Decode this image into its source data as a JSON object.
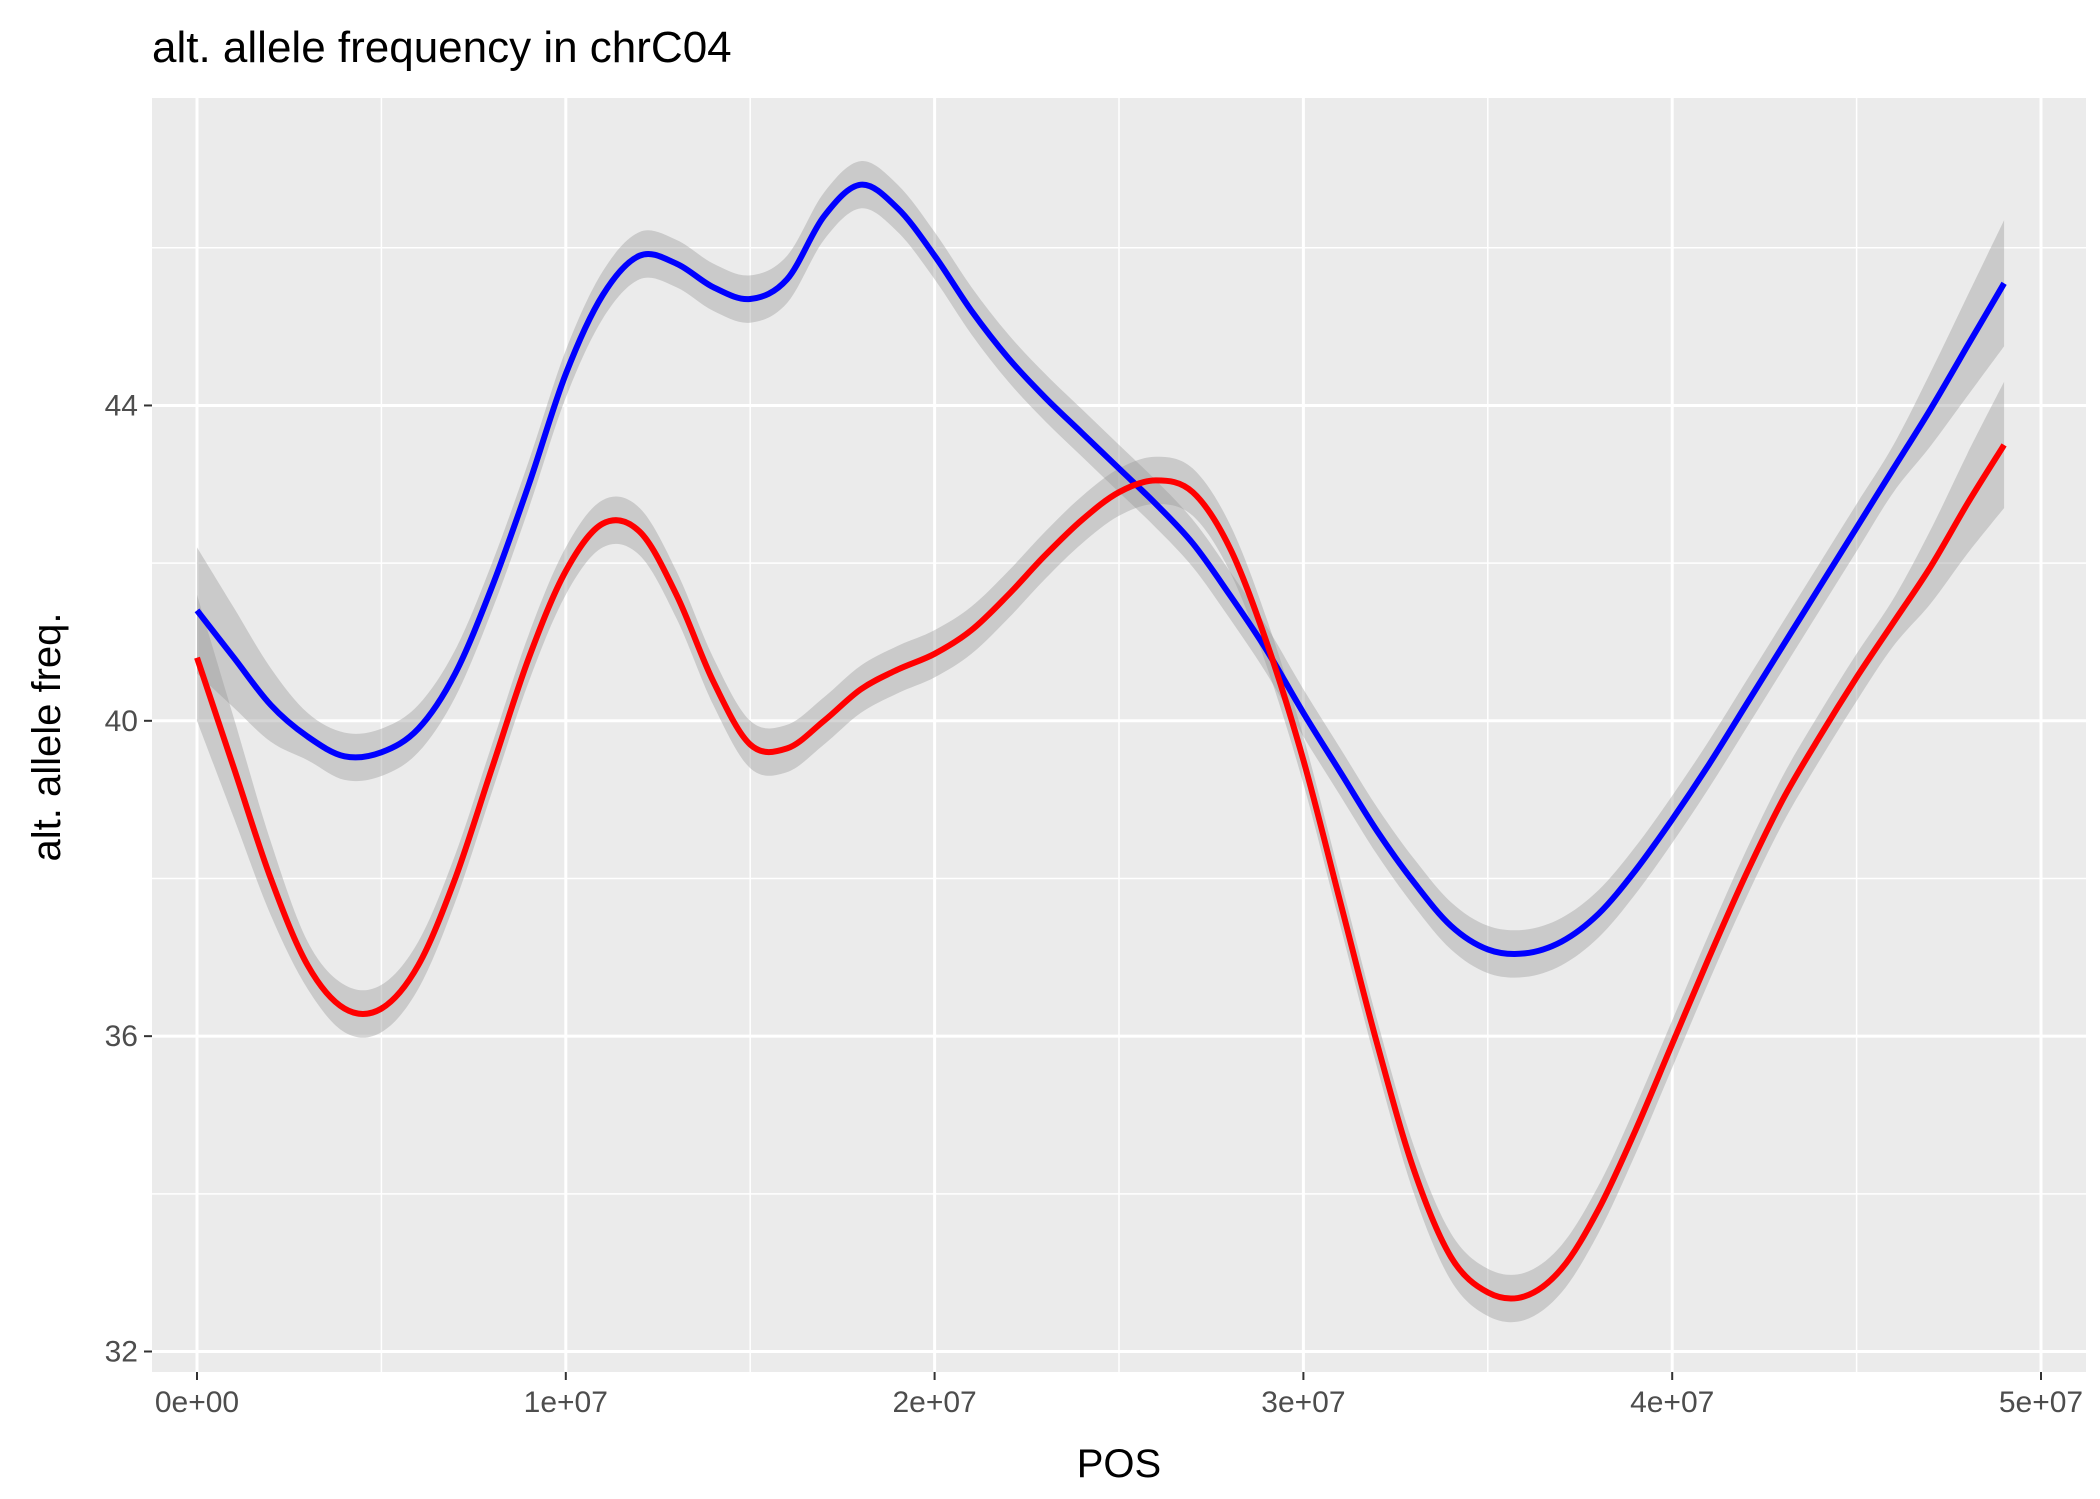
{
  "chart_data": {
    "type": "line",
    "title": "alt. allele frequency in chrC04",
    "xlabel": "POS",
    "ylabel": "alt. allele freq.",
    "xlim": [
      -1220000,
      51220000
    ],
    "ylim": [
      31.74,
      47.9
    ],
    "x_ticks": [
      0,
      10000000,
      20000000,
      30000000,
      40000000,
      50000000
    ],
    "x_tick_labels": [
      "0e+00",
      "1e+07",
      "2e+07",
      "3e+07",
      "4e+07",
      "5e+07"
    ],
    "y_ticks": [
      32,
      36,
      40,
      44
    ],
    "y_tick_labels": [
      "32",
      "36",
      "40",
      "44"
    ],
    "grid": true,
    "legend": "none",
    "x": [
      0,
      1000000,
      2000000,
      3000000,
      4000000,
      5000000,
      6000000,
      7000000,
      8000000,
      9000000,
      10000000,
      11000000,
      12000000,
      13000000,
      14000000,
      15000000,
      16000000,
      17000000,
      18000000,
      19000000,
      20000000,
      21000000,
      22000000,
      23000000,
      24000000,
      25000000,
      26000000,
      27000000,
      28000000,
      29000000,
      30000000,
      31000000,
      32000000,
      33000000,
      34000000,
      35000000,
      36000000,
      37000000,
      38000000,
      39000000,
      40000000,
      41000000,
      42000000,
      43000000,
      44000000,
      45000000,
      46000000,
      47000000,
      48000000,
      49000000
    ],
    "series": [
      {
        "color": "#0000ff",
        "values": [
          41.4,
          40.8,
          40.2,
          39.8,
          39.55,
          39.6,
          39.9,
          40.6,
          41.7,
          43.0,
          44.4,
          45.4,
          45.9,
          45.8,
          45.5,
          45.35,
          45.6,
          46.4,
          46.8,
          46.5,
          45.9,
          45.2,
          44.6,
          44.1,
          43.65,
          43.2,
          42.75,
          42.25,
          41.6,
          40.9,
          40.1,
          39.35,
          38.6,
          37.95,
          37.4,
          37.1,
          37.05,
          37.2,
          37.55,
          38.1,
          38.75,
          39.45,
          40.2,
          40.95,
          41.7,
          42.45,
          43.2,
          43.95,
          44.75,
          45.55
        ]
      },
      {
        "color": "#ff0000",
        "values": [
          40.8,
          39.4,
          38.0,
          36.9,
          36.35,
          36.35,
          36.9,
          38.0,
          39.4,
          40.8,
          41.9,
          42.5,
          42.4,
          41.6,
          40.5,
          39.7,
          39.65,
          40.0,
          40.4,
          40.65,
          40.85,
          41.15,
          41.6,
          42.1,
          42.55,
          42.9,
          43.05,
          42.9,
          42.2,
          41.0,
          39.5,
          37.7,
          35.9,
          34.3,
          33.2,
          32.75,
          32.7,
          33.05,
          33.8,
          34.8,
          35.9,
          37.0,
          38.05,
          39.0,
          39.8,
          40.55,
          41.25,
          41.95,
          42.75,
          43.5
        ]
      }
    ]
  }
}
